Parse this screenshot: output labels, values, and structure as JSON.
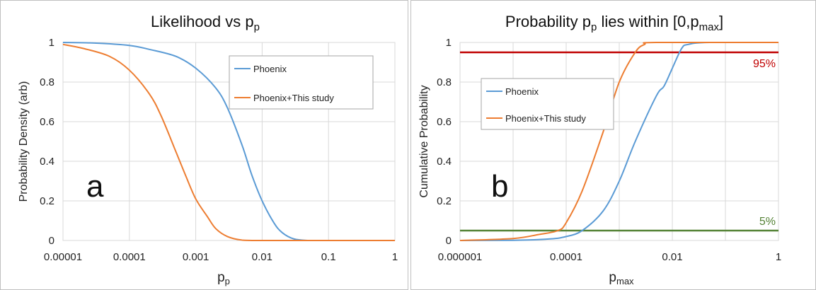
{
  "colors": {
    "phoenix": "#5b9bd5",
    "combined": "#ed7d31",
    "ref95": "#c00000",
    "ref5": "#548235",
    "grid": "#d9d9d9",
    "border": "#bfbfbf"
  },
  "chart_data": [
    {
      "type": "line",
      "id": "a",
      "title": {
        "main": "Likelihood vs p",
        "sub": "p"
      },
      "panel_letter": "a",
      "xlabel": {
        "main": "p",
        "sub": "p"
      },
      "ylabel": "Probability Density (arb)",
      "x_scale": "log",
      "xlim": [
        1e-05,
        1
      ],
      "ylim": [
        0,
        1
      ],
      "x_ticks": [
        1e-05,
        0.0001,
        0.001,
        0.01,
        0.1,
        1
      ],
      "x_tick_labels": [
        "0.00001",
        "0.0001",
        "0.001",
        "0.01",
        "0.1",
        "1"
      ],
      "y_ticks": [
        0,
        0.2,
        0.4,
        0.6,
        0.8,
        1
      ],
      "y_tick_labels": [
        "0",
        "0.2",
        "0.4",
        "0.6",
        "0.8",
        "1"
      ],
      "grid": true,
      "legend": {
        "placement": "top-right",
        "entries": [
          "Phoenix",
          "Phoenix+This study"
        ]
      },
      "series": [
        {
          "name": "Phoenix",
          "color_key": "phoenix",
          "points": [
            [
              1e-05,
              1.0
            ],
            [
              3e-05,
              0.997
            ],
            [
              0.0001,
              0.985
            ],
            [
              0.0002,
              0.965
            ],
            [
              0.0005,
              0.93
            ],
            [
              0.001,
              0.87
            ],
            [
              0.002,
              0.77
            ],
            [
              0.003,
              0.67
            ],
            [
              0.005,
              0.48
            ],
            [
              0.007,
              0.33
            ],
            [
              0.01,
              0.2
            ],
            [
              0.015,
              0.09
            ],
            [
              0.02,
              0.04
            ],
            [
              0.03,
              0.008
            ],
            [
              0.05,
              0.0
            ],
            [
              0.1,
              0.0
            ],
            [
              1,
              0.0
            ]
          ]
        },
        {
          "name": "Phoenix+This study",
          "color_key": "combined",
          "points": [
            [
              1e-05,
              0.99
            ],
            [
              2e-05,
              0.97
            ],
            [
              5e-05,
              0.93
            ],
            [
              0.0001,
              0.86
            ],
            [
              0.0002,
              0.74
            ],
            [
              0.0003,
              0.63
            ],
            [
              0.0005,
              0.45
            ],
            [
              0.0007,
              0.33
            ],
            [
              0.001,
              0.21
            ],
            [
              0.0015,
              0.12
            ],
            [
              0.002,
              0.06
            ],
            [
              0.003,
              0.02
            ],
            [
              0.005,
              0.002
            ],
            [
              0.01,
              0.0
            ],
            [
              0.1,
              0.0
            ],
            [
              1,
              0.0
            ]
          ]
        }
      ]
    },
    {
      "type": "line",
      "id": "b",
      "title": {
        "pre": "Probability p",
        "sub1": "p",
        "mid": " lies within [0,p",
        "sub2": "max",
        "post": "]"
      },
      "panel_letter": "b",
      "xlabel": {
        "main": "p",
        "sub": "max"
      },
      "ylabel": "Cumulative Probability",
      "x_scale": "log",
      "xlim": [
        1e-06,
        1
      ],
      "ylim": [
        0,
        1
      ],
      "x_ticks": [
        1e-06,
        0.0001,
        0.01,
        1
      ],
      "x_tick_labels": [
        "0.000001",
        "0.0001",
        "0.01",
        "1"
      ],
      "x_minor_grid": [
        1e-05,
        0.001,
        0.1
      ],
      "y_ticks": [
        0,
        0.2,
        0.4,
        0.6,
        0.8,
        1
      ],
      "y_tick_labels": [
        "0",
        "0.2",
        "0.4",
        "0.6",
        "0.8",
        "1"
      ],
      "grid": true,
      "legend": {
        "placement": "center-left",
        "entries": [
          "Phoenix",
          "Phoenix+This study"
        ]
      },
      "reference_lines": [
        {
          "y": 0.95,
          "label": "95%",
          "color_key": "ref95"
        },
        {
          "y": 0.05,
          "label": "5%",
          "color_key": "ref5"
        }
      ],
      "series": [
        {
          "name": "Phoenix",
          "color_key": "phoenix",
          "points": [
            [
              1e-06,
              0.0
            ],
            [
              1e-05,
              0.001
            ],
            [
              5e-05,
              0.008
            ],
            [
              0.0001,
              0.02
            ],
            [
              0.0002,
              0.05
            ],
            [
              0.0005,
              0.15
            ],
            [
              0.001,
              0.3
            ],
            [
              0.002,
              0.5
            ],
            [
              0.005,
              0.73
            ],
            [
              0.007,
              0.78
            ],
            [
              0.01,
              0.87
            ],
            [
              0.015,
              0.97
            ],
            [
              0.02,
              0.99
            ],
            [
              0.05,
              1.0
            ],
            [
              1,
              1.0
            ]
          ]
        },
        {
          "name": "Phoenix+This study",
          "color_key": "combined",
          "points": [
            [
              1e-06,
              0.0
            ],
            [
              1e-05,
              0.01
            ],
            [
              3e-05,
              0.03
            ],
            [
              7e-05,
              0.05
            ],
            [
              0.0001,
              0.09
            ],
            [
              0.0002,
              0.25
            ],
            [
              0.0005,
              0.55
            ],
            [
              0.001,
              0.8
            ],
            [
              0.002,
              0.95
            ],
            [
              0.003,
              0.99
            ],
            [
              0.005,
              1.0
            ],
            [
              1,
              1.0
            ]
          ]
        }
      ]
    }
  ]
}
